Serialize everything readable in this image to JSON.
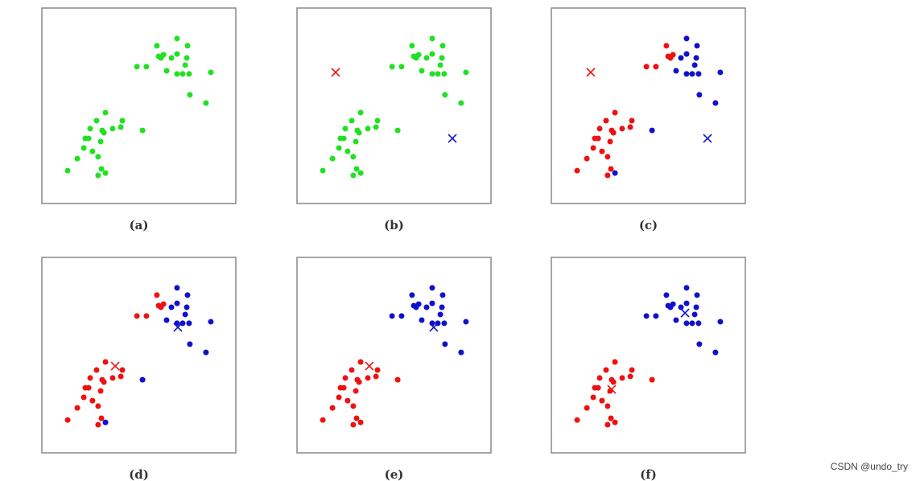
{
  "chart_data": [
    {
      "type": "scatter",
      "title": "(a)",
      "xlim": [
        0,
        100
      ],
      "ylim": [
        0,
        100
      ],
      "series": [
        {
          "color": "#22e022",
          "marker": "dot",
          "x": [
            59.3,
            69.7,
            75.1,
            69.7,
            60.2,
            61.4,
            62.7,
            49.0,
            53.9,
            64.3,
            73.9,
            69.7,
            72.6,
            75.9,
            87.1,
            74.7,
            76.3,
            84.6,
            66.8,
            32.8,
            28.2,
            41.5,
            24.9,
            31.1,
            32.0,
            36.5,
            40.7,
            51.9,
            30.3,
            24.1,
            26.1,
            21.6,
            29.0,
            18.3,
            13.3,
            30.7,
            29.0,
            32.8,
            22.4
          ],
          "values": [
            80.7,
            84.4,
            80.7,
            76.5,
            75.3,
            74.5,
            76.1,
            70.0,
            70.0,
            67.9,
            70.8,
            66.3,
            66.3,
            66.3,
            67.1,
            74.5,
            55.6,
            51.4,
            74.5,
            46.5,
            42.4,
            42.4,
            38.3,
            37.4,
            36.2,
            38.3,
            39.1,
            37.4,
            31.7,
            33.3,
            26.7,
            28.4,
            23.9,
            23.0,
            16.8,
            17.7,
            14.4,
            15.6,
            33.3
          ]
        }
      ]
    },
    {
      "type": "scatter",
      "title": "(b)",
      "xlim": [
        0,
        100
      ],
      "ylim": [
        0,
        100
      ],
      "series": [
        {
          "color": "#22e022",
          "marker": "dot",
          "x": [
            59.3,
            69.7,
            75.1,
            69.7,
            60.2,
            61.4,
            62.7,
            49.0,
            53.9,
            64.3,
            73.9,
            69.7,
            72.6,
            75.9,
            87.1,
            74.7,
            76.3,
            84.6,
            66.8,
            32.8,
            28.2,
            41.5,
            24.9,
            31.1,
            32.0,
            36.5,
            40.7,
            51.9,
            30.3,
            24.1,
            26.1,
            21.6,
            29.0,
            18.3,
            13.3,
            30.7,
            29.0,
            32.8,
            22.4
          ],
          "values": [
            80.7,
            84.4,
            80.7,
            76.5,
            75.3,
            74.5,
            76.1,
            70.0,
            70.0,
            67.9,
            70.8,
            66.3,
            66.3,
            66.3,
            67.1,
            74.5,
            55.6,
            51.4,
            74.5,
            46.5,
            42.4,
            42.4,
            38.3,
            37.4,
            36.2,
            38.3,
            39.1,
            37.4,
            31.7,
            33.3,
            26.7,
            28.4,
            23.9,
            23.0,
            16.8,
            17.7,
            14.4,
            15.6,
            33.3
          ]
        },
        {
          "color": "#ee1111",
          "marker": "x",
          "x": [
            19.9
          ],
          "values": [
            67.1
          ]
        },
        {
          "color": "#1111cc",
          "marker": "x",
          "x": [
            80.1
          ],
          "values": [
            33.3
          ]
        }
      ]
    },
    {
      "type": "scatter",
      "title": "(c)",
      "xlim": [
        0,
        100
      ],
      "ylim": [
        0,
        100
      ],
      "series": [
        {
          "color": "#ee1111",
          "marker": "dot",
          "x": [
            59.3,
            60.2,
            61.4,
            62.7,
            49.0,
            53.9,
            32.8,
            28.2,
            41.5,
            24.9,
            31.1,
            32.0,
            36.5,
            40.7,
            30.3,
            24.1,
            26.1,
            21.6,
            29.0,
            18.3,
            13.3,
            30.7,
            29.0,
            22.4
          ],
          "values": [
            80.7,
            75.3,
            74.5,
            76.1,
            70.0,
            70.0,
            46.5,
            42.4,
            42.4,
            38.3,
            37.4,
            36.2,
            38.3,
            39.1,
            31.7,
            33.3,
            26.7,
            28.4,
            23.9,
            23.0,
            16.8,
            17.7,
            14.4,
            33.3
          ]
        },
        {
          "color": "#1111cc",
          "marker": "dot",
          "x": [
            69.7,
            75.1,
            69.7,
            64.3,
            73.9,
            69.7,
            72.6,
            75.9,
            87.1,
            74.7,
            76.3,
            84.6,
            66.8,
            51.9,
            32.8
          ],
          "values": [
            84.4,
            80.7,
            76.5,
            67.9,
            70.8,
            66.3,
            66.3,
            66.3,
            67.1,
            74.5,
            55.6,
            51.4,
            74.5,
            37.4,
            15.6
          ]
        },
        {
          "color": "#ee1111",
          "marker": "x",
          "x": [
            20.3
          ],
          "values": [
            67.1
          ]
        },
        {
          "color": "#1111cc",
          "marker": "x",
          "x": [
            80.5
          ],
          "values": [
            33.3
          ]
        }
      ]
    },
    {
      "type": "scatter",
      "title": "(d)",
      "xlim": [
        0,
        100
      ],
      "ylim": [
        0,
        100
      ],
      "series": [
        {
          "color": "#ee1111",
          "marker": "dot",
          "x": [
            59.3,
            60.2,
            61.4,
            62.7,
            49.0,
            53.9,
            32.8,
            28.2,
            41.5,
            24.9,
            31.1,
            32.0,
            36.5,
            40.7,
            30.3,
            24.1,
            26.1,
            21.6,
            29.0,
            18.3,
            13.3,
            30.7,
            29.0,
            22.4
          ],
          "values": [
            80.7,
            75.3,
            74.5,
            76.1,
            70.0,
            70.0,
            46.5,
            42.4,
            42.4,
            38.3,
            37.4,
            36.2,
            38.3,
            39.1,
            31.7,
            33.3,
            26.7,
            28.4,
            23.9,
            23.0,
            16.8,
            17.7,
            14.4,
            33.3
          ]
        },
        {
          "color": "#1111cc",
          "marker": "dot",
          "x": [
            69.7,
            75.1,
            69.7,
            64.3,
            73.9,
            69.7,
            72.6,
            75.9,
            87.1,
            74.7,
            76.3,
            84.6,
            66.8,
            51.9,
            32.8
          ],
          "values": [
            84.4,
            80.7,
            76.5,
            67.9,
            70.8,
            66.3,
            66.3,
            66.3,
            67.1,
            74.5,
            55.6,
            51.4,
            74.5,
            37.4,
            15.6
          ]
        },
        {
          "color": "#ee1111",
          "marker": "x",
          "x": [
            37.8
          ],
          "values": [
            44.4
          ]
        },
        {
          "color": "#1111cc",
          "marker": "x",
          "x": [
            70.1
          ],
          "values": [
            64.2
          ]
        }
      ]
    },
    {
      "type": "scatter",
      "title": "(e)",
      "xlim": [
        0,
        100
      ],
      "ylim": [
        0,
        100
      ],
      "series": [
        {
          "color": "#ee1111",
          "marker": "dot",
          "x": [
            32.8,
            28.2,
            41.5,
            24.9,
            31.1,
            32.0,
            36.5,
            40.7,
            51.9,
            30.3,
            24.1,
            26.1,
            21.6,
            29.0,
            18.3,
            13.3,
            30.7,
            29.0,
            32.8,
            22.4
          ],
          "values": [
            46.5,
            42.4,
            42.4,
            38.3,
            37.4,
            36.2,
            38.3,
            39.1,
            37.4,
            31.7,
            33.3,
            26.7,
            28.4,
            23.9,
            23.0,
            16.8,
            17.7,
            14.4,
            15.6,
            33.3
          ]
        },
        {
          "color": "#1111cc",
          "marker": "dot",
          "x": [
            59.3,
            69.7,
            75.1,
            69.7,
            60.2,
            61.4,
            62.7,
            49.0,
            53.9,
            64.3,
            73.9,
            69.7,
            72.6,
            75.9,
            87.1,
            74.7,
            76.3,
            84.6,
            66.8
          ],
          "values": [
            80.7,
            84.4,
            80.7,
            76.5,
            75.3,
            74.5,
            76.1,
            70.0,
            70.0,
            67.9,
            70.8,
            66.3,
            66.3,
            66.3,
            67.1,
            74.5,
            55.6,
            51.4,
            74.5
          ]
        },
        {
          "color": "#ee1111",
          "marker": "x",
          "x": [
            37.3
          ],
          "values": [
            44.4
          ]
        },
        {
          "color": "#1111cc",
          "marker": "x",
          "x": [
            70.5
          ],
          "values": [
            64.2
          ]
        }
      ]
    },
    {
      "type": "scatter",
      "title": "(f)",
      "xlim": [
        0,
        100
      ],
      "ylim": [
        0,
        100
      ],
      "series": [
        {
          "color": "#ee1111",
          "marker": "dot",
          "x": [
            32.8,
            28.2,
            41.5,
            24.9,
            31.1,
            32.0,
            36.5,
            40.7,
            51.9,
            30.3,
            24.1,
            26.1,
            21.6,
            29.0,
            18.3,
            13.3,
            30.7,
            29.0,
            32.8,
            22.4
          ],
          "values": [
            46.5,
            42.4,
            42.4,
            38.3,
            37.4,
            36.2,
            38.3,
            39.1,
            37.4,
            31.7,
            33.3,
            26.7,
            28.4,
            23.9,
            23.0,
            16.8,
            17.7,
            14.4,
            15.6,
            33.3
          ]
        },
        {
          "color": "#1111cc",
          "marker": "dot",
          "x": [
            59.3,
            69.7,
            75.1,
            69.7,
            60.2,
            61.4,
            62.7,
            49.0,
            53.9,
            64.3,
            73.9,
            69.7,
            72.6,
            75.9,
            87.1,
            74.7,
            76.3,
            84.6,
            66.8
          ],
          "values": [
            80.7,
            84.4,
            80.7,
            76.5,
            75.3,
            74.5,
            76.1,
            70.0,
            70.0,
            67.9,
            70.8,
            66.3,
            66.3,
            66.3,
            67.1,
            74.5,
            55.6,
            51.4,
            74.5
          ]
        },
        {
          "color": "#ee1111",
          "marker": "x",
          "x": [
            31.1
          ],
          "values": [
            32.5
          ]
        },
        {
          "color": "#1111cc",
          "marker": "x",
          "x": [
            68.9
          ],
          "values": [
            71.6
          ]
        }
      ]
    }
  ],
  "watermark": "CSDN @undo_try"
}
